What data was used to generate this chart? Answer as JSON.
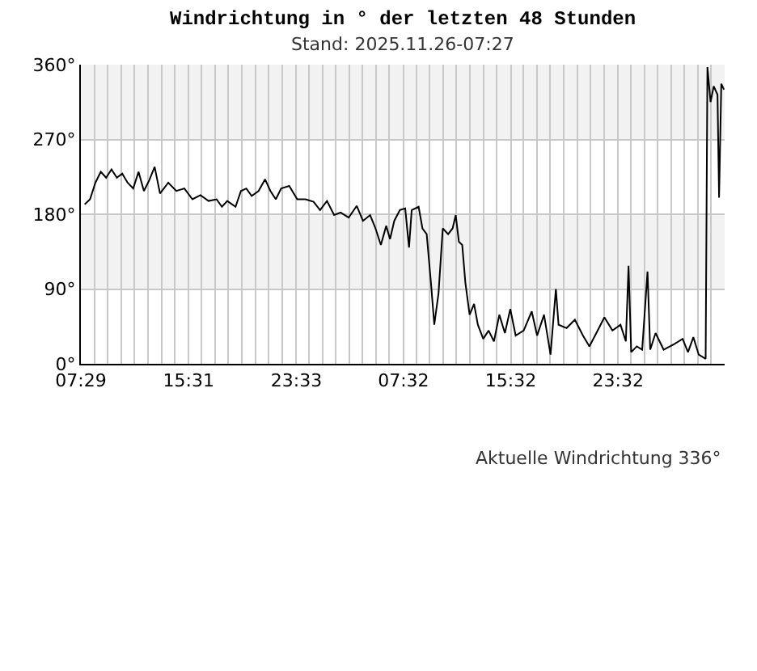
{
  "chart_data": {
    "type": "line",
    "title": "Windrichtung in ° der letzten 48 Stunden",
    "subtitle": "Stand: 2025.11.26-07:27",
    "annotations": [
      "Aktuelle Windrichtung 336°"
    ],
    "x": [
      "2025-11-24T07:46",
      "2025-11-24T08:10",
      "2025-11-24T08:34",
      "2025-11-24T08:58",
      "2025-11-24T09:22",
      "2025-11-24T09:46",
      "2025-11-24T10:10",
      "2025-11-24T10:34",
      "2025-11-24T10:58",
      "2025-11-24T11:23",
      "2025-11-24T11:47",
      "2025-11-24T12:11",
      "2025-11-24T12:35",
      "2025-11-24T12:59",
      "2025-11-24T13:23",
      "2025-11-24T14:00",
      "2025-11-24T14:36",
      "2025-11-24T15:12",
      "2025-11-24T15:48",
      "2025-11-24T16:24",
      "2025-11-24T17:00",
      "2025-11-24T17:36",
      "2025-11-24T18:00",
      "2025-11-24T18:24",
      "2025-11-24T19:01",
      "2025-11-24T19:25",
      "2025-11-24T19:49",
      "2025-11-24T20:13",
      "2025-11-24T20:44",
      "2025-11-24T21:13",
      "2025-11-24T21:37",
      "2025-11-24T22:01",
      "2025-11-24T22:25",
      "2025-11-24T23:01",
      "2025-11-24T23:37",
      "2025-11-25T00:14",
      "2025-11-25T00:50",
      "2025-11-25T01:19",
      "2025-11-25T01:50",
      "2025-11-25T02:22",
      "2025-11-25T02:51",
      "2025-11-25T03:27",
      "2025-11-25T04:03",
      "2025-11-25T04:31",
      "2025-11-25T05:03",
      "2025-11-25T05:27",
      "2025-11-25T05:51",
      "2025-11-25T06:15",
      "2025-11-25T06:32",
      "2025-11-25T06:51",
      "2025-11-25T07:16",
      "2025-11-25T07:40",
      "2025-11-25T07:57",
      "2025-11-25T08:09",
      "2025-11-25T08:40",
      "2025-11-25T08:57",
      "2025-11-25T09:16",
      "2025-11-25T09:35",
      "2025-11-25T09:50",
      "2025-11-25T10:09",
      "2025-11-25T10:28",
      "2025-11-25T10:52",
      "2025-11-25T11:12",
      "2025-11-25T11:26",
      "2025-11-25T11:40",
      "2025-11-25T11:55",
      "2025-11-25T12:09",
      "2025-11-25T12:28",
      "2025-11-25T12:48",
      "2025-11-25T13:05",
      "2025-11-25T13:29",
      "2025-11-25T13:53",
      "2025-11-25T14:17",
      "2025-11-25T14:41",
      "2025-11-25T15:06",
      "2025-11-25T15:30",
      "2025-11-25T15:54",
      "2025-11-25T16:30",
      "2025-11-25T17:06",
      "2025-11-25T17:30",
      "2025-11-25T18:01",
      "2025-11-25T18:30",
      "2025-11-25T18:54",
      "2025-11-25T19:06",
      "2025-11-25T19:42",
      "2025-11-25T20:19",
      "2025-11-25T20:55",
      "2025-11-25T21:24",
      "2025-11-25T21:55",
      "2025-11-25T22:31",
      "2025-11-25T23:07",
      "2025-11-25T23:43",
      "2025-11-26T00:07",
      "2025-11-26T00:19",
      "2025-11-26T00:31",
      "2025-11-26T00:56",
      "2025-11-26T01:20",
      "2025-11-26T01:44",
      "2025-11-26T01:56",
      "2025-11-26T02:20",
      "2025-11-26T02:56",
      "2025-11-26T03:45",
      "2025-11-26T04:21",
      "2025-11-26T04:45",
      "2025-11-26T05:09",
      "2025-11-26T05:33",
      "2025-11-26T06:04",
      "2025-11-26T06:12",
      "2025-11-26T06:26",
      "2025-11-26T06:40",
      "2025-11-26T06:57",
      "2025-11-26T07:04",
      "2025-11-26T07:14",
      "2025-11-26T07:26"
    ],
    "series": [
      {
        "color": "#000000",
        "values": [
          192,
          198,
          218,
          231,
          224,
          234,
          224,
          229,
          218,
          211,
          231,
          208,
          221,
          237,
          205,
          218,
          208,
          211,
          198,
          203,
          196,
          198,
          189,
          196,
          189,
          208,
          211,
          202,
          208,
          222,
          208,
          198,
          211,
          214,
          198,
          198,
          195,
          185,
          196,
          179,
          182,
          176,
          190,
          172,
          179,
          163,
          143,
          166,
          150,
          172,
          185,
          187,
          140,
          185,
          189,
          163,
          156,
          98,
          47,
          85,
          163,
          156,
          163,
          179,
          147,
          143,
          98,
          59,
          72,
          47,
          30,
          40,
          27,
          59,
          37,
          66,
          34,
          40,
          63,
          34,
          59,
          11,
          90,
          47,
          43,
          53,
          34,
          21,
          37,
          56,
          40,
          47,
          27,
          118,
          14,
          21,
          17,
          111,
          17,
          37,
          17,
          24,
          30,
          14,
          32,
          11,
          6,
          357,
          315,
          334,
          324,
          200,
          337,
          330
        ]
      }
    ],
    "xlim": [
      "2025-11-24T07:29",
      "2025-11-26T07:29"
    ],
    "xticks": [
      {
        "value": "2025-11-24T07:29",
        "label": "07:29"
      },
      {
        "value": "2025-11-24T08:29",
        "label": null
      },
      {
        "value": "2025-11-24T09:29",
        "label": null
      },
      {
        "value": "2025-11-24T10:29",
        "label": null
      },
      {
        "value": "2025-11-24T11:29",
        "label": null
      },
      {
        "value": "2025-11-24T12:29",
        "label": null
      },
      {
        "value": "2025-11-24T13:29",
        "label": null
      },
      {
        "value": "2025-11-24T14:29",
        "label": null
      },
      {
        "value": "2025-11-24T15:31",
        "label": "15:31"
      },
      {
        "value": "2025-11-24T16:29",
        "label": null
      },
      {
        "value": "2025-11-24T17:29",
        "label": null
      },
      {
        "value": "2025-11-24T18:29",
        "label": null
      },
      {
        "value": "2025-11-24T19:29",
        "label": null
      },
      {
        "value": "2025-11-24T20:29",
        "label": null
      },
      {
        "value": "2025-11-24T21:29",
        "label": null
      },
      {
        "value": "2025-11-24T22:29",
        "label": null
      },
      {
        "value": "2025-11-24T23:33",
        "label": "23:33"
      },
      {
        "value": "2025-11-25T00:29",
        "label": null
      },
      {
        "value": "2025-11-25T01:29",
        "label": null
      },
      {
        "value": "2025-11-25T02:29",
        "label": null
      },
      {
        "value": "2025-11-25T03:29",
        "label": null
      },
      {
        "value": "2025-11-25T04:29",
        "label": null
      },
      {
        "value": "2025-11-25T05:29",
        "label": null
      },
      {
        "value": "2025-11-25T06:29",
        "label": null
      },
      {
        "value": "2025-11-25T07:32",
        "label": "07:32"
      },
      {
        "value": "2025-11-25T08:29",
        "label": null
      },
      {
        "value": "2025-11-25T09:29",
        "label": null
      },
      {
        "value": "2025-11-25T10:29",
        "label": null
      },
      {
        "value": "2025-11-25T11:29",
        "label": null
      },
      {
        "value": "2025-11-25T12:29",
        "label": null
      },
      {
        "value": "2025-11-25T13:29",
        "label": null
      },
      {
        "value": "2025-11-25T14:29",
        "label": null
      },
      {
        "value": "2025-11-25T15:32",
        "label": "15:32"
      },
      {
        "value": "2025-11-25T16:29",
        "label": null
      },
      {
        "value": "2025-11-25T17:29",
        "label": null
      },
      {
        "value": "2025-11-25T18:29",
        "label": null
      },
      {
        "value": "2025-11-25T19:29",
        "label": null
      },
      {
        "value": "2025-11-25T20:29",
        "label": null
      },
      {
        "value": "2025-11-25T21:29",
        "label": null
      },
      {
        "value": "2025-11-25T22:29",
        "label": null
      },
      {
        "value": "2025-11-25T23:32",
        "label": "23:32"
      },
      {
        "value": "2025-11-26T00:29",
        "label": null
      },
      {
        "value": "2025-11-26T01:29",
        "label": null
      },
      {
        "value": "2025-11-26T02:29",
        "label": null
      },
      {
        "value": "2025-11-26T03:29",
        "label": null
      },
      {
        "value": "2025-11-26T04:29",
        "label": null
      },
      {
        "value": "2025-11-26T05:29",
        "label": null
      },
      {
        "value": "2025-11-26T06:29",
        "label": null
      }
    ],
    "ylim": [
      0,
      360
    ],
    "yticks": [
      {
        "value": 0,
        "label": "0°"
      },
      {
        "value": 90,
        "label": "90°"
      },
      {
        "value": 180,
        "label": "180°"
      },
      {
        "value": 270,
        "label": "270°"
      },
      {
        "value": 360,
        "label": "360°"
      }
    ],
    "bands": [
      {
        "axis": "y",
        "from": 90,
        "to": 180,
        "color": "#f2f2f2"
      },
      {
        "axis": "y",
        "from": 270,
        "to": 360,
        "color": "#f2f2f2"
      }
    ],
    "grid": true,
    "marker": "none",
    "line_style": "solid"
  }
}
